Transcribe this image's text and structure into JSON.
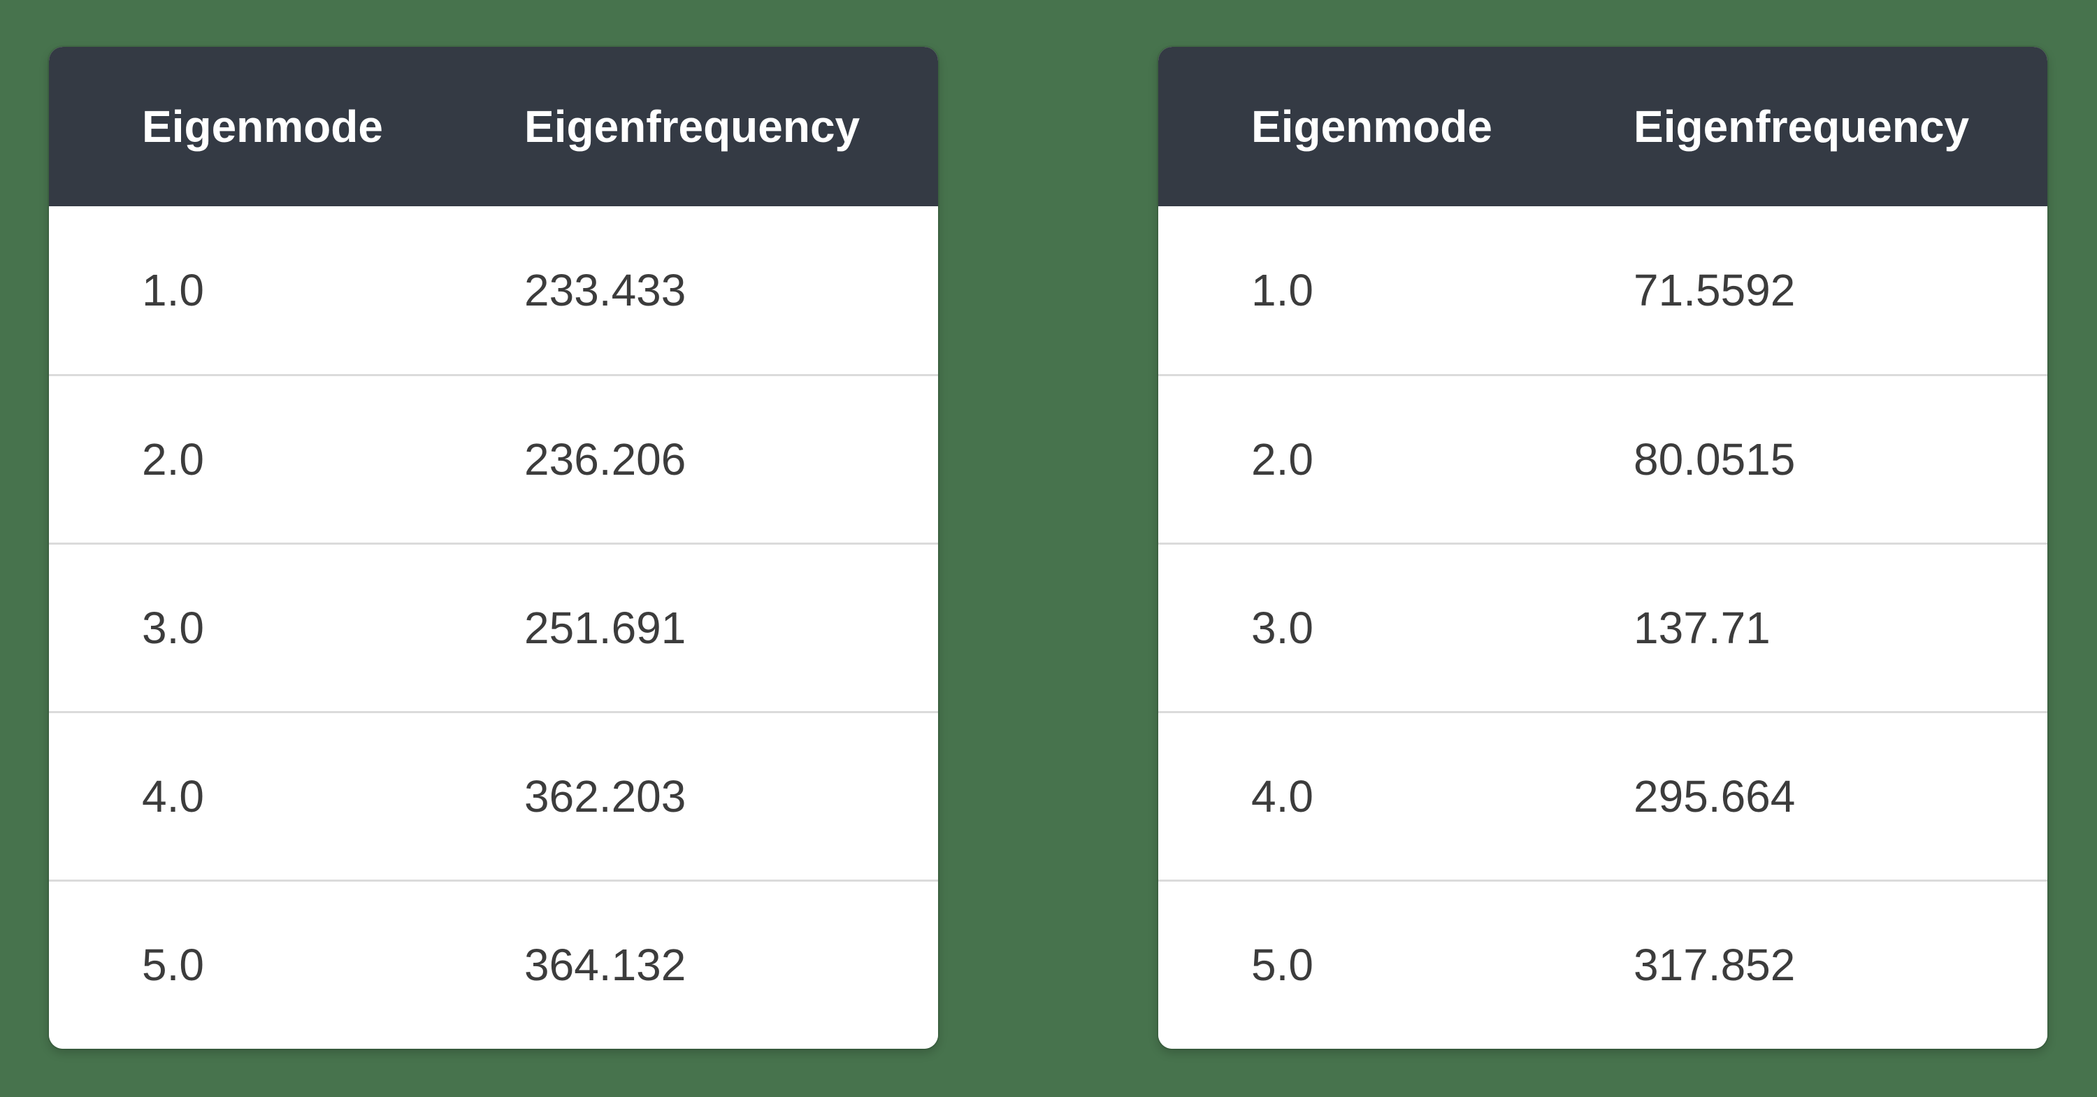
{
  "colors": {
    "page_bg": "#47734D",
    "header_bg": "#343A44",
    "header_text": "#FFFFFF",
    "cell_text": "#3C3C3C",
    "row_bg": "#FFFFFF",
    "divider": "#DBDBDB"
  },
  "tables": [
    {
      "headers": [
        "Eigenmode",
        "Eigenfrequency"
      ],
      "rows": [
        [
          "1.0",
          "233.433"
        ],
        [
          "2.0",
          "236.206"
        ],
        [
          "3.0",
          "251.691"
        ],
        [
          "4.0",
          "362.203"
        ],
        [
          "5.0",
          "364.132"
        ]
      ]
    },
    {
      "headers": [
        "Eigenmode",
        "Eigenfrequency"
      ],
      "rows": [
        [
          "1.0",
          "71.5592"
        ],
        [
          "2.0",
          "80.0515"
        ],
        [
          "3.0",
          "137.71"
        ],
        [
          "4.0",
          "295.664"
        ],
        [
          "5.0",
          "317.852"
        ]
      ]
    }
  ]
}
